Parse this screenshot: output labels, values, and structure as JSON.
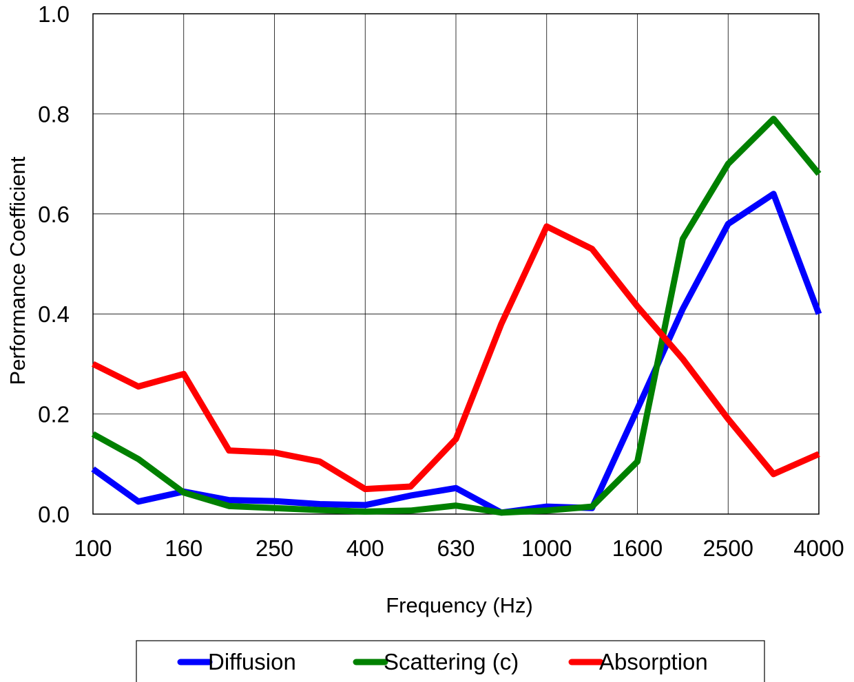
{
  "chart_data": {
    "type": "line",
    "xlabel": "Frequency (Hz)",
    "ylabel": "Performance Coefficient",
    "x": [
      "100",
      "125",
      "160",
      "200",
      "250",
      "315",
      "400",
      "500",
      "630",
      "800",
      "1000",
      "1250",
      "1600",
      "2000",
      "2500",
      "3150",
      "4000"
    ],
    "x_tick_labels": [
      "100",
      "160",
      "250",
      "400",
      "630",
      "1000",
      "1600",
      "2500",
      "4000"
    ],
    "y_tick_labels": [
      "0.0",
      "0.2",
      "0.4",
      "0.6",
      "0.8",
      "1.0"
    ],
    "ylim": [
      0,
      1.0
    ],
    "y_ticks": [
      0,
      0.2,
      0.4,
      0.6,
      0.8,
      1.0
    ],
    "grid": true,
    "legend_position": "bottom",
    "series": [
      {
        "name": "Diffusion",
        "color": "#0000FF",
        "values": [
          0.09,
          0.025,
          0.045,
          0.028,
          0.026,
          0.02,
          0.018,
          0.037,
          0.052,
          0.003,
          0.015,
          0.012,
          0.21,
          0.41,
          0.58,
          0.64,
          0.4
        ]
      },
      {
        "name": "Scattering (c)",
        "color": "#008000",
        "values": [
          0.16,
          0.11,
          0.043,
          0.016,
          0.012,
          0.008,
          0.005,
          0.007,
          0.017,
          0.003,
          0.007,
          0.015,
          0.105,
          0.55,
          0.7,
          0.79,
          0.68
        ]
      },
      {
        "name": "Absorption",
        "color": "#FF0000",
        "values": [
          0.3,
          0.255,
          0.28,
          0.127,
          0.123,
          0.105,
          0.05,
          0.055,
          0.15,
          0.38,
          0.575,
          0.53,
          0.415,
          0.31,
          0.19,
          0.08,
          0.12
        ]
      }
    ]
  }
}
